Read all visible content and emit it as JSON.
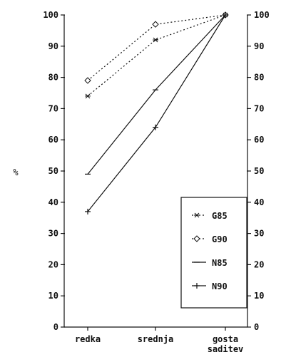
{
  "chart_data": {
    "type": "line",
    "categories": [
      "redka",
      "srednja",
      "gosta\nsaditev"
    ],
    "ylabel": "%",
    "ylim": [
      0,
      100
    ],
    "yticks": [
      0,
      10,
      20,
      30,
      40,
      50,
      60,
      70,
      80,
      90,
      100
    ],
    "grid": false,
    "legend_position": "bottom-right",
    "series": [
      {
        "name": "G85",
        "values": [
          74,
          92,
          100
        ],
        "style": "dotted",
        "marker": "star"
      },
      {
        "name": "G90",
        "values": [
          79,
          97,
          100
        ],
        "style": "dotted",
        "marker": "diamond"
      },
      {
        "name": "N85",
        "values": [
          49,
          76,
          100
        ],
        "style": "solid",
        "marker": "dash"
      },
      {
        "name": "N90",
        "values": [
          37,
          64,
          100
        ],
        "style": "solid",
        "marker": "plus"
      }
    ]
  }
}
